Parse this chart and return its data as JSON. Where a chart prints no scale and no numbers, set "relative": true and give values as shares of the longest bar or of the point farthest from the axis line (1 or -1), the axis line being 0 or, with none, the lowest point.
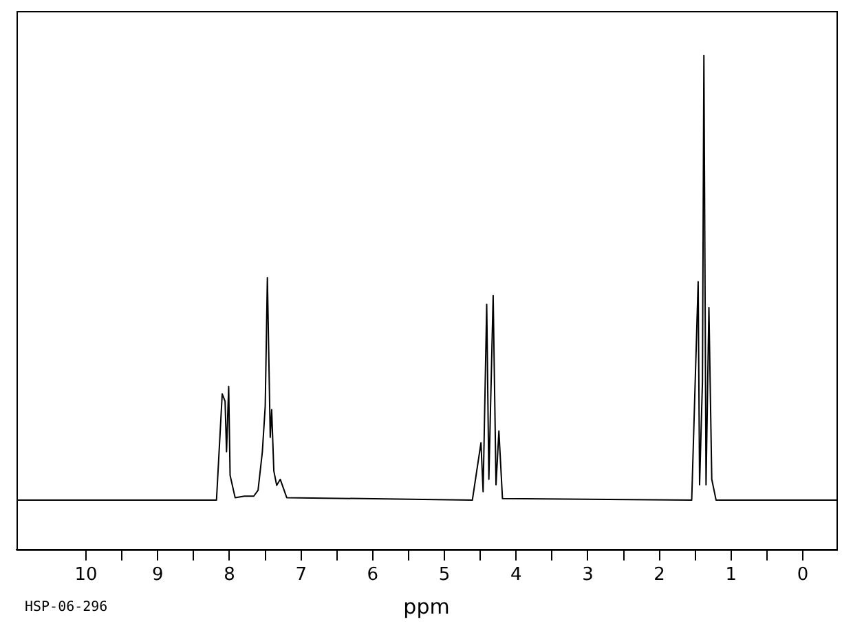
{
  "chart_data": {
    "type": "line",
    "xlabel": "ppm",
    "relative": true,
    "grid": false,
    "legend": false,
    "tick_labels": "x",
    "marker": "none",
    "line_style": "solid",
    "annotations": [
      "HSP-06-296"
    ],
    "xlim": [
      10.97,
      -0.47
    ],
    "xticks": [
      10,
      {
        "value": 9.5,
        "label": null
      },
      9,
      {
        "value": 8.5,
        "label": null
      },
      8,
      {
        "value": 7.5,
        "label": null
      },
      7,
      {
        "value": 6.5,
        "label": null
      },
      6,
      {
        "value": 5.5,
        "label": null
      },
      5,
      {
        "value": 4.5,
        "label": null
      },
      4,
      {
        "value": 3.5,
        "label": null
      },
      3,
      {
        "value": 2.5,
        "label": null
      },
      2,
      {
        "value": 1.5,
        "label": null
      },
      1,
      {
        "value": 0.5,
        "label": null
      },
      0
    ],
    "series": [
      {
        "color": "#000000",
        "x": [
          10.97,
          8.18,
          8.1,
          8.06,
          8.04,
          8.01,
          7.99,
          7.92,
          7.79,
          7.66,
          7.6,
          7.54,
          7.5,
          7.47,
          7.45,
          7.43,
          7.41,
          7.38,
          7.34,
          7.29,
          7.2,
          4.61,
          4.49,
          4.46,
          4.41,
          4.38,
          4.32,
          4.28,
          4.24,
          4.19,
          1.55,
          1.46,
          1.44,
          1.4,
          1.38,
          1.35,
          1.31,
          1.27,
          1.21,
          -0.47
        ],
        "values": [
          0.1,
          0.1,
          0.315,
          0.3,
          0.198,
          0.33,
          0.15,
          0.105,
          0.108,
          0.108,
          0.12,
          0.198,
          0.29,
          0.55,
          0.39,
          0.227,
          0.283,
          0.159,
          0.13,
          0.142,
          0.105,
          0.1,
          0.216,
          0.117,
          0.496,
          0.142,
          0.514,
          0.131,
          0.24,
          0.103,
          0.1,
          0.542,
          0.131,
          0.34,
          1,
          0.131,
          0.49,
          0.142,
          0.1,
          0.1
        ]
      }
    ]
  }
}
